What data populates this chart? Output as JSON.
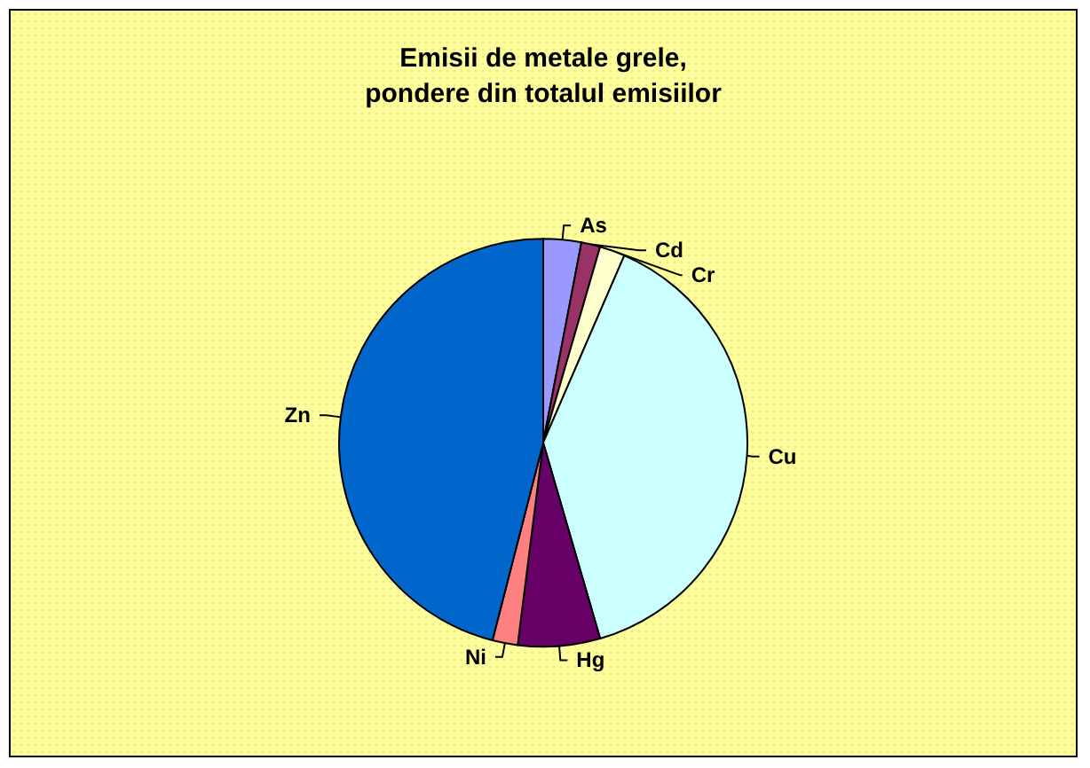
{
  "chart_data": {
    "type": "pie",
    "title": "Emisii de metale grele,\npondere din totalul emisiilor",
    "categories": [
      "As",
      "Cd",
      "Cr",
      "Cu",
      "Hg",
      "Ni",
      "Zn"
    ],
    "values": [
      3,
      1.5,
      2,
      39,
      6.5,
      2,
      46
    ],
    "colors": [
      "#9999ff",
      "#993366",
      "#ffffcc",
      "#ccffff",
      "#660066",
      "#ff8080",
      "#0066cc"
    ]
  }
}
